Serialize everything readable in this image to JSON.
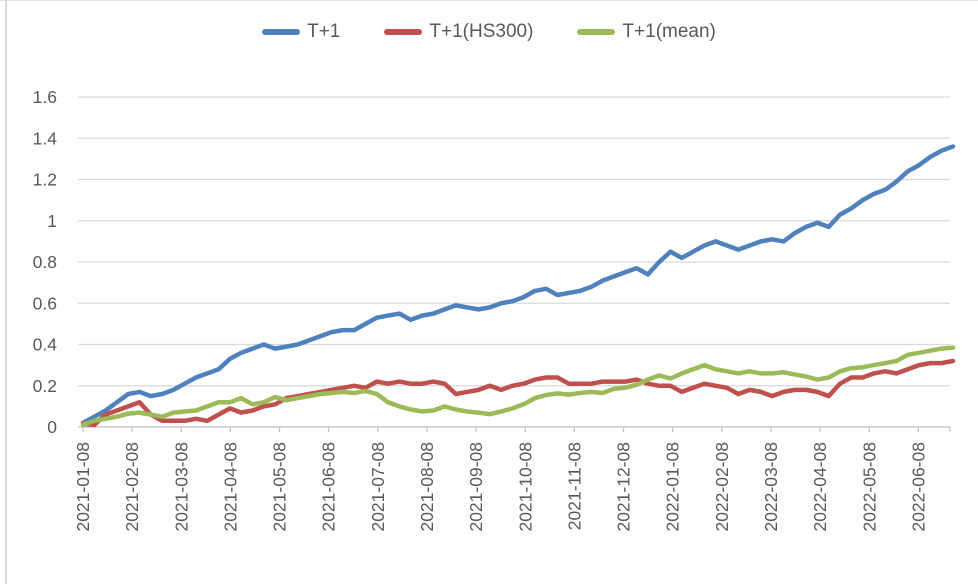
{
  "colors": {
    "text": "#595959",
    "gridline": "#d9d9d9",
    "axis": "#bfbfbf",
    "tick": "#bfbfbf",
    "frame_border": "#d9d9d9",
    "series_blue": "#4F81BD",
    "series_red": "#C0504D",
    "series_green": "#9BBB59"
  },
  "chart_data": {
    "type": "line",
    "title": "",
    "x_start_date": "2021-01-08",
    "x_interval": "weekly",
    "x_tick_labels": [
      "2021-01-08",
      "2021-02-08",
      "2021-03-08",
      "2021-04-08",
      "2021-05-08",
      "2021-06-08",
      "2021-07-08",
      "2021-08-08",
      "2021-09-08",
      "2021-10-08",
      "2021-11-08",
      "2021-12-08",
      "2022-01-08",
      "2022-02-08",
      "2022-03-08",
      "2022-04-08",
      "2022-05-08",
      "2022-06-08"
    ],
    "y_tick_labels": [
      "0",
      "0.2",
      "0.4",
      "0.6",
      "0.8",
      "1",
      "1.2",
      "1.4",
      "1.6"
    ],
    "ylim": [
      0,
      1.6
    ],
    "grid": true,
    "legend_position": "top",
    "series": [
      {
        "name": "T+1",
        "color": "#4F81BD",
        "values": [
          0.02,
          0.05,
          0.08,
          0.12,
          0.16,
          0.17,
          0.15,
          0.16,
          0.18,
          0.21,
          0.24,
          0.26,
          0.28,
          0.33,
          0.36,
          0.38,
          0.4,
          0.38,
          0.39,
          0.4,
          0.42,
          0.44,
          0.46,
          0.47,
          0.47,
          0.5,
          0.53,
          0.54,
          0.55,
          0.52,
          0.54,
          0.55,
          0.57,
          0.59,
          0.58,
          0.57,
          0.58,
          0.6,
          0.61,
          0.63,
          0.66,
          0.67,
          0.64,
          0.65,
          0.66,
          0.68,
          0.71,
          0.73,
          0.75,
          0.77,
          0.74,
          0.8,
          0.85,
          0.82,
          0.85,
          0.88,
          0.9,
          0.88,
          0.86,
          0.88,
          0.9,
          0.91,
          0.9,
          0.94,
          0.97,
          0.99,
          0.97,
          1.03,
          1.06,
          1.1,
          1.13,
          1.15,
          1.19,
          1.24,
          1.27,
          1.31,
          1.34,
          1.36
        ]
      },
      {
        "name": "T+1(HS300)",
        "color": "#C0504D",
        "values": [
          0.015,
          0.01,
          0.06,
          0.08,
          0.1,
          0.12,
          0.06,
          0.03,
          0.03,
          0.03,
          0.04,
          0.03,
          0.06,
          0.09,
          0.07,
          0.08,
          0.1,
          0.11,
          0.14,
          0.15,
          0.16,
          0.17,
          0.18,
          0.19,
          0.2,
          0.19,
          0.22,
          0.21,
          0.22,
          0.21,
          0.21,
          0.22,
          0.21,
          0.16,
          0.17,
          0.18,
          0.2,
          0.18,
          0.2,
          0.21,
          0.23,
          0.24,
          0.24,
          0.21,
          0.21,
          0.21,
          0.22,
          0.22,
          0.22,
          0.23,
          0.21,
          0.2,
          0.2,
          0.17,
          0.19,
          0.21,
          0.2,
          0.19,
          0.16,
          0.18,
          0.17,
          0.15,
          0.17,
          0.18,
          0.18,
          0.17,
          0.15,
          0.21,
          0.24,
          0.24,
          0.26,
          0.27,
          0.26,
          0.28,
          0.3,
          0.31,
          0.31,
          0.32
        ]
      },
      {
        "name": "T+1(mean)",
        "color": "#9BBB59",
        "values": [
          0.01,
          0.03,
          0.04,
          0.05,
          0.065,
          0.07,
          0.06,
          0.05,
          0.07,
          0.075,
          0.08,
          0.1,
          0.12,
          0.12,
          0.14,
          0.11,
          0.12,
          0.145,
          0.13,
          0.14,
          0.15,
          0.16,
          0.165,
          0.17,
          0.165,
          0.175,
          0.16,
          0.12,
          0.1,
          0.085,
          0.075,
          0.08,
          0.1,
          0.085,
          0.075,
          0.07,
          0.062,
          0.075,
          0.09,
          0.11,
          0.14,
          0.155,
          0.163,
          0.157,
          0.165,
          0.17,
          0.165,
          0.185,
          0.19,
          0.205,
          0.23,
          0.25,
          0.235,
          0.26,
          0.28,
          0.3,
          0.28,
          0.27,
          0.26,
          0.27,
          0.26,
          0.26,
          0.265,
          0.255,
          0.245,
          0.23,
          0.24,
          0.27,
          0.285,
          0.29,
          0.3,
          0.31,
          0.32,
          0.35,
          0.36,
          0.37,
          0.38,
          0.385
        ]
      }
    ]
  }
}
